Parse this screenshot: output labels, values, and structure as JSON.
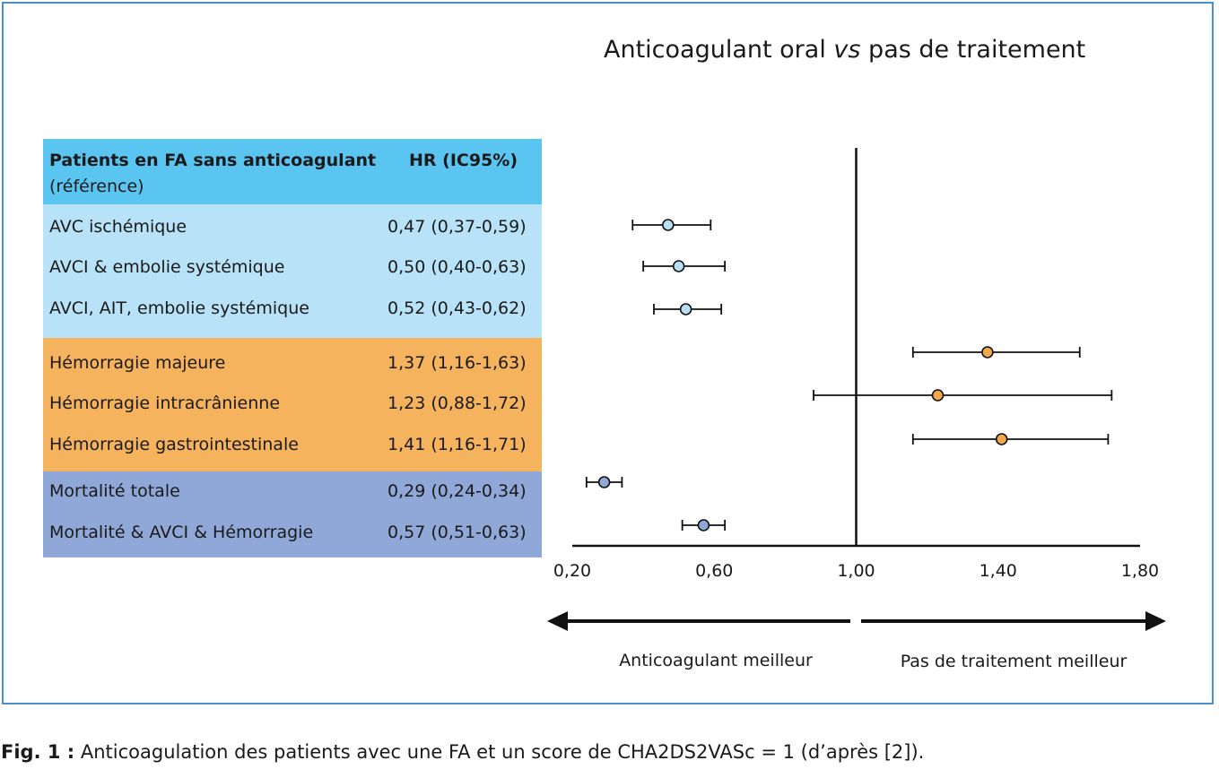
{
  "caption": {
    "prefix": "Fig. 1 :",
    "text": "Anticoagulation des patients avec une FA et un score de CHA2DS2VASc = 1 (d’après [2])."
  },
  "chart_data": {
    "type": "forest",
    "title_main": "Anticoagulant oral ",
    "title_italic": "vs",
    "title_end": " pas de traitement",
    "table_header": {
      "label": "Patients en FA sans anticoagulant",
      "sublabel": "(référence)",
      "hr": "HR (IC95%)"
    },
    "reference_line": 1.0,
    "xlim": [
      0.2,
      1.8
    ],
    "xticks": [
      0.2,
      0.6,
      1.0,
      1.4,
      1.8
    ],
    "xtick_labels": [
      "0,20",
      "0,60",
      "1,00",
      "1,40",
      "1,80"
    ],
    "direction_labels": {
      "left": "Anticoagulant meilleur",
      "right": "Pas de traitement meilleur"
    },
    "colors": {
      "header_bg": "#5bc5f1",
      "group_stroke": "#b8e2f7",
      "group_hemorrhage": "#f6b35e",
      "group_mortality": "#8fa8d8",
      "marker_stroke": "#b9dff4",
      "marker_hemorrhage": "#f3a94b",
      "marker_mortality": "#8fa8d8"
    },
    "groups": [
      {
        "name": "stroke",
        "color_key": "group_stroke",
        "marker_key": "marker_stroke",
        "rows": [
          {
            "label": "AVC ischémique",
            "hr_text": "0,47 (0,37-0,59)",
            "hr": 0.47,
            "lo": 0.37,
            "hi": 0.59
          },
          {
            "label": "AVCI & embolie systémique",
            "hr_text": "0,50 (0,40-0,63)",
            "hr": 0.5,
            "lo": 0.4,
            "hi": 0.63
          },
          {
            "label": "AVCI, AIT, embolie systémique",
            "hr_text": "0,52 (0,43-0,62)",
            "hr": 0.52,
            "lo": 0.43,
            "hi": 0.62
          }
        ]
      },
      {
        "name": "hemorrhage",
        "color_key": "group_hemorrhage",
        "marker_key": "marker_hemorrhage",
        "rows": [
          {
            "label": "Hémorragie majeure",
            "hr_text": "1,37 (1,16-1,63)",
            "hr": 1.37,
            "lo": 1.16,
            "hi": 1.63
          },
          {
            "label": "Hémorragie intracrânienne",
            "hr_text": "1,23 (0,88-1,72)",
            "hr": 1.23,
            "lo": 0.88,
            "hi": 1.72
          },
          {
            "label": "Hémorragie gastrointestinale",
            "hr_text": "1,41 (1,16-1,71)",
            "hr": 1.41,
            "lo": 1.16,
            "hi": 1.71
          }
        ]
      },
      {
        "name": "mortality",
        "color_key": "group_mortality",
        "marker_key": "marker_mortality",
        "rows": [
          {
            "label": "Mortalité totale",
            "hr_text": "0,29 (0,24-0,34)",
            "hr": 0.29,
            "lo": 0.24,
            "hi": 0.34
          },
          {
            "label": "Mortalité & AVCI & Hémorragie",
            "hr_text": "0,57 (0,51-0,63)",
            "hr": 0.57,
            "lo": 0.51,
            "hi": 0.63
          }
        ]
      }
    ]
  }
}
